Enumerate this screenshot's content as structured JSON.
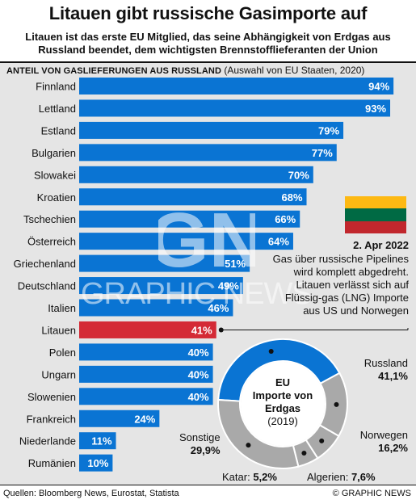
{
  "title": "Litauen gibt russische Gasimporte auf",
  "subtitle": "Litauen ist das erste EU Mitglied, das seine Abhängigkeit von Erdgas aus Russland beendet, dem wichtigsten Brennstofflieferanten der Union",
  "chart_heading": "ANTEIL VON GASLIEFERUNGEN AUS RUSSLAND",
  "chart_heading_note": "(Auswahl von  EU Staaten, 2020)",
  "source": "Quellen: Bloomberg News, Eurostat, Statista",
  "credit": "© GRAPHIC NEWS",
  "watermark": {
    "logo": "GN",
    "text": "GRAPHIC NEWS"
  },
  "colors": {
    "bar": "#0a74d3",
    "highlight": "#d42a35",
    "panel": "#e5e5e5",
    "donut_russia": "#0a74d3",
    "donut_other": "#a9a9a9"
  },
  "flag": {
    "colors": [
      "#fdb913",
      "#006a44",
      "#c1272d"
    ]
  },
  "annotation": {
    "date": "2. Apr 2022",
    "text": "Gas über russische Pipelines wird komplett abgedreht. Litauen verlässt sich auf Flüssig-gas (LNG) Importe aus US und Norwegen"
  },
  "donut": {
    "title_line1": "EU",
    "title_line2": "Importe von",
    "title_line3": "Erdgas",
    "year": "(2019)",
    "labels": {
      "russland_name": "Russland",
      "russland_value": "41,1%",
      "norwegen_name": "Norwegen",
      "norwegen_value": "16,2%",
      "algerien": "Algerien:",
      "algerien_value": "7,6%",
      "katar": "Katar:",
      "katar_value": "5,2%",
      "sonstige_name": "Sonstige",
      "sonstige_value": "29,9%"
    }
  },
  "chart_data": [
    {
      "type": "bar",
      "orientation": "horizontal",
      "categories": [
        "Finnland",
        "Lettland",
        "Estland",
        "Bulgarien",
        "Slowakei",
        "Kroatien",
        "Tschechien",
        "Österreich",
        "Griechenland",
        "Deutschland",
        "Italien",
        "Litauen",
        "Polen",
        "Ungarn",
        "Slowenien",
        "Frankreich",
        "Niederlande",
        "Rumänien"
      ],
      "values": [
        94,
        93,
        79,
        77,
        70,
        68,
        66,
        64,
        51,
        49,
        46,
        41,
        40,
        40,
        40,
        24,
        11,
        10
      ],
      "value_labels": [
        "94%",
        "93%",
        "79%",
        "77%",
        "70%",
        "68%",
        "66%",
        "64%",
        "51%",
        "49%",
        "46%",
        "41%",
        "40%",
        "40%",
        "40%",
        "24%",
        "11%",
        "10%"
      ],
      "highlight": "Litauen",
      "xlim": [
        0,
        100
      ]
    },
    {
      "type": "pie",
      "style": "donut",
      "categories": [
        "Russland",
        "Norwegen",
        "Algerien",
        "Katar",
        "Sonstige"
      ],
      "values": [
        41.1,
        16.2,
        7.6,
        5.2,
        29.9
      ]
    }
  ]
}
